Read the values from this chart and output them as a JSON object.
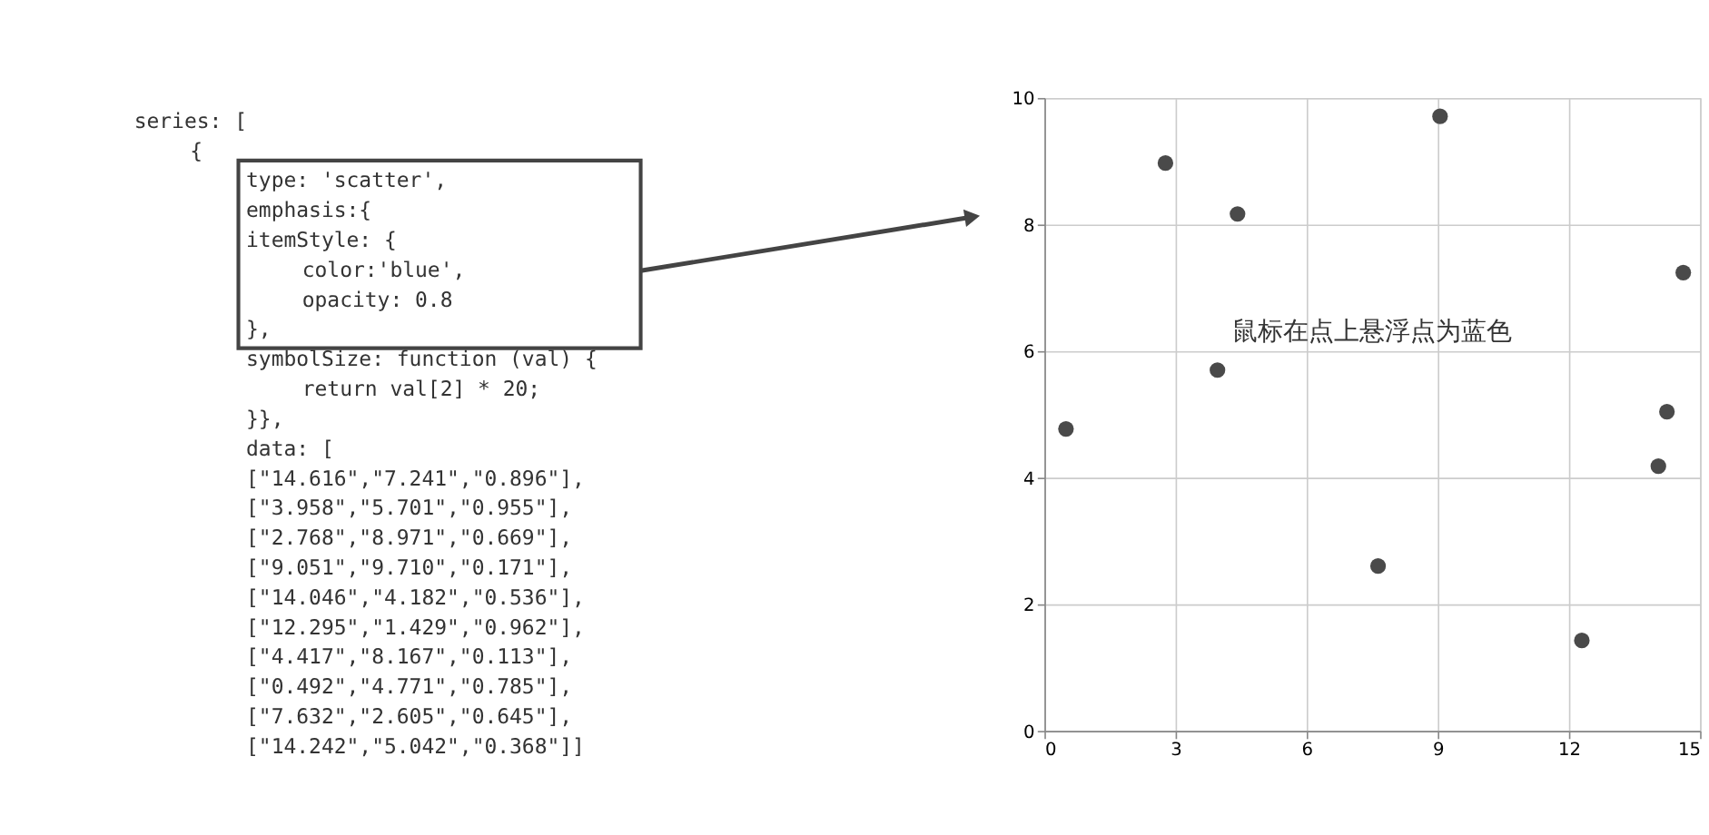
{
  "chart_data": {
    "type": "scatter",
    "x": [
      14.616,
      3.958,
      2.768,
      9.051,
      14.046,
      12.295,
      4.417,
      0.492,
      7.632,
      14.242
    ],
    "series": [
      {
        "color": "#4a4a4a",
        "values": [
          7.241,
          5.701,
          8.971,
          9.71,
          4.182,
          1.429,
          8.167,
          4.771,
          2.605,
          5.042
        ]
      }
    ],
    "xlim": [
      0,
      15
    ],
    "xticks": [
      0,
      3,
      6,
      9,
      12,
      15
    ],
    "ylim": [
      0,
      10
    ],
    "yticks": [
      0,
      2,
      4,
      6,
      8,
      10
    ],
    "grid": true,
    "marker": "circle",
    "annotations": [
      "鼠标在点上悬浮点为蓝色",
      "series: [",
      "    {",
      "        type: 'scatter',",
      "        emphasis:{",
      "        itemStyle: {",
      "            color:'blue',",
      "            opacity: 0.8",
      "        },",
      "        symbolSize: function (val) {",
      "            return val[2] * 20;",
      "        }},",
      "        data: [",
      "        [\"14.616\",\"7.241\",\"0.896\"],",
      "        [\"3.958\",\"5.701\",\"0.955\"],",
      "        [\"2.768\",\"8.971\",\"0.669\"],",
      "        [\"9.051\",\"9.710\",\"0.171\"],",
      "        [\"14.046\",\"4.182\",\"0.536\"],",
      "        [\"12.295\",\"1.429\",\"0.962\"],",
      "        [\"4.417\",\"8.167\",\"0.113\"],",
      "        [\"0.492\",\"4.771\",\"0.785\"],",
      "        [\"7.632\",\"2.605\",\"0.645\"],",
      "        [\"14.242\",\"5.042\",\"0.368\"]]"
    ]
  }
}
